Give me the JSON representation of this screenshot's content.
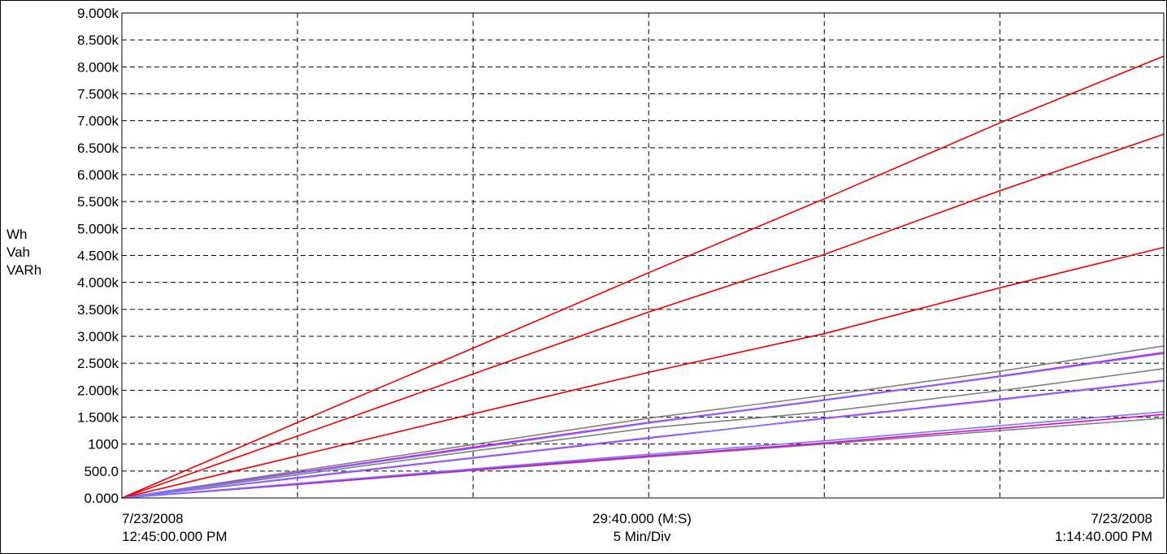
{
  "chart_data": {
    "type": "line",
    "ylabel_lines": [
      "Wh",
      "Vah",
      "VARh"
    ],
    "yticks": [
      "0.000",
      "500.0",
      "1000",
      "1.500k",
      "2.000k",
      "2.500k",
      "3.000k",
      "3.500k",
      "4.000k",
      "4.500k",
      "5.000k",
      "5.500k",
      "6.000k",
      "6.500k",
      "7.000k",
      "7.500k",
      "8.000k",
      "8.500k",
      "9.000k"
    ],
    "ylim": [
      0,
      9000
    ],
    "xlim": [
      0,
      29.6667
    ],
    "x_unit": "minutes since start",
    "grid": true,
    "x_start": {
      "date": "7/23/2008",
      "time": "12:45:00.000 PM"
    },
    "x_center": {
      "span": "29:40.000 (M:S)",
      "div": "5 Min/Div"
    },
    "x_end": {
      "date": "7/23/2008",
      "time": "1:14:40.000 PM"
    },
    "series": [
      {
        "color": "#ee0000",
        "x": [
          0,
          5,
          10,
          15,
          20,
          25,
          29.6667
        ],
        "values": [
          0,
          1400,
          2780,
          4180,
          5550,
          6960,
          8200
        ]
      },
      {
        "color": "#ee0000",
        "x": [
          0,
          5,
          10,
          15,
          20,
          25,
          29.6667
        ],
        "values": [
          0,
          1150,
          2300,
          3450,
          4520,
          5700,
          6750
        ]
      },
      {
        "color": "#ee0000",
        "x": [
          0,
          5,
          10,
          15,
          20,
          25,
          29.6667
        ],
        "values": [
          0,
          780,
          1560,
          2330,
          3050,
          3900,
          4650
        ]
      },
      {
        "color": "#808080",
        "x": [
          0,
          5,
          10,
          15,
          20,
          25,
          29.6667
        ],
        "values": [
          0,
          500,
          990,
          1480,
          1900,
          2350,
          2820
        ]
      },
      {
        "color": "#808080",
        "x": [
          0,
          5,
          10,
          15,
          20,
          25,
          29.6667
        ],
        "values": [
          0,
          430,
          870,
          1300,
          1600,
          1990,
          2400
        ]
      },
      {
        "color": "#808080",
        "x": [
          0,
          5,
          10,
          15,
          20,
          25,
          29.6667
        ],
        "values": [
          0,
          250,
          510,
          760,
          1000,
          1250,
          1480
        ]
      },
      {
        "color": "#dd00dd",
        "x": [
          0,
          5,
          10,
          15,
          20,
          25,
          29.6667
        ],
        "values": [
          0,
          470,
          940,
          1400,
          1820,
          2260,
          2700
        ]
      },
      {
        "color": "#dd00dd",
        "x": [
          0,
          5,
          10,
          15,
          20,
          25,
          29.6667
        ],
        "values": [
          0,
          370,
          740,
          1110,
          1480,
          1830,
          2180
        ]
      },
      {
        "color": "#dd00dd",
        "x": [
          0,
          5,
          10,
          15,
          20,
          25,
          29.6667
        ],
        "values": [
          0,
          255,
          520,
          780,
          1020,
          1290,
          1550
        ]
      },
      {
        "color": "#7777ff",
        "x": [
          0,
          5,
          10,
          15,
          20,
          25,
          29.6667
        ],
        "values": [
          0,
          460,
          920,
          1390,
          1810,
          2250,
          2680
        ]
      },
      {
        "color": "#7777ff",
        "x": [
          0,
          5,
          10,
          15,
          20,
          25,
          29.6667
        ],
        "values": [
          0,
          380,
          750,
          1120,
          1470,
          1820,
          2170
        ]
      },
      {
        "color": "#7777ff",
        "x": [
          0,
          5,
          10,
          15,
          20,
          25,
          29.6667
        ],
        "values": [
          0,
          270,
          540,
          810,
          1060,
          1340,
          1600
        ]
      }
    ]
  }
}
